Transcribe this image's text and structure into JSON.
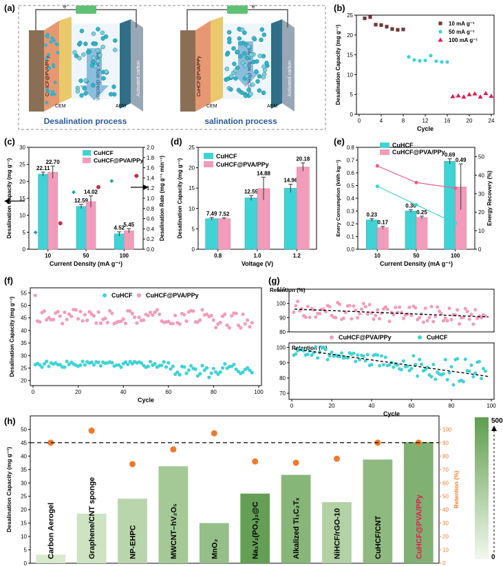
{
  "panel_labels": {
    "a": "(a)",
    "b": "(b)",
    "c": "(c)",
    "d": "(d)",
    "e": "(e)",
    "f": "(f)",
    "g": "(g)",
    "h": "(h)"
  },
  "colors": {
    "cyan": "#3fd3d6",
    "pink": "#f39bbb",
    "cyan_dark": "#2bbcc4",
    "pink_dark": "#e8608c",
    "brown": "#6b3b3b",
    "red": "#e01d4f",
    "orange": "#f07a2a",
    "green": "#73a55a",
    "green_light": "#e3f0d8",
    "dkpink": "#c0304e",
    "teal": "#2aa0a8"
  },
  "schematic": {
    "left_caption": "Desalination process",
    "right_caption": "salination process",
    "electron_left": "e⁻",
    "electron_right": "e⁻",
    "electrode_label": "CuHCF@PVA/PPy",
    "cem": "CEM",
    "aem": "AEM",
    "flow": "Water flow direction",
    "carbon": "Activated carbon"
  },
  "chart_data": [
    {
      "panel": "b",
      "type": "scatter",
      "xlabel": "Cycle",
      "ylabel": "Desalination Capacity (mg g⁻¹)",
      "xlim": [
        0,
        24
      ],
      "ylim": [
        0,
        25
      ],
      "xticks": [
        0,
        4,
        8,
        12,
        16,
        20,
        24
      ],
      "yticks": [
        0,
        5,
        10,
        15,
        20,
        25
      ],
      "series": [
        {
          "name": "10 mA g⁻¹",
          "marker": "square",
          "x": [
            1,
            2,
            3,
            4,
            5,
            6,
            7,
            8
          ],
          "y": [
            24.2,
            24.5,
            22.6,
            22.5,
            22.1,
            21.5,
            21.3,
            21.4
          ]
        },
        {
          "name": "50 mA g⁻¹",
          "marker": "circle",
          "x": [
            9,
            10,
            11,
            12,
            13,
            14,
            15,
            16
          ],
          "y": [
            14.5,
            13.7,
            13.5,
            13.6,
            14.8,
            13.4,
            13.2,
            13.2
          ]
        },
        {
          "name": "100 mA g⁻¹",
          "marker": "triangle",
          "x": [
            17,
            18,
            19,
            20,
            21,
            22,
            23,
            24
          ],
          "y": [
            4.5,
            4.7,
            4.4,
            5.0,
            5.2,
            4.4,
            5.3,
            4.6
          ]
        }
      ]
    },
    {
      "panel": "c",
      "type": "bar",
      "xlabel": "Current Density (mA g⁻¹)",
      "ylabel": "Desalination Capacity (mg g⁻¹)",
      "ylabel2": "Desalination Rate (mg g⁻¹ min⁻¹)",
      "categories": [
        "10",
        "50",
        "100"
      ],
      "ylim": [
        0,
        30
      ],
      "yticks": [
        0,
        5,
        10,
        15,
        20,
        25,
        30
      ],
      "y2lim": [
        0,
        2.0
      ],
      "y2ticks": [
        "0.0",
        "0.2",
        "0.4",
        "0.6",
        "0.8",
        "1.0",
        "1.2",
        "1.4",
        "1.6",
        "1.8",
        "2.0"
      ],
      "series": [
        {
          "name": "CuHCF",
          "values": [
            22.11,
            12.59,
            4.52
          ],
          "errors": [
            0.6,
            0.6,
            0.6
          ],
          "labels": [
            "22.11",
            "12.59",
            "4.52"
          ],
          "rate": [
            0.33,
            1.12,
            1.34
          ]
        },
        {
          "name": "CuHCF@PVA/PPy",
          "values": [
            22.7,
            14.02,
            5.45
          ],
          "errors": [
            1.8,
            1.7,
            0.6
          ],
          "labels": [
            "22.70",
            "14.02",
            "5.45"
          ],
          "rate": [
            0.51,
            1.22,
            1.44
          ]
        }
      ]
    },
    {
      "panel": "d",
      "type": "bar",
      "xlabel": "Voltage (V)",
      "ylabel": "Desalination Capacity (mg g⁻¹)",
      "categories": [
        "0.8",
        "1.0",
        "1.2"
      ],
      "ylim": [
        0,
        25
      ],
      "yticks": [
        0,
        5,
        10,
        15,
        20,
        25
      ],
      "series": [
        {
          "name": "CuHCF",
          "values": [
            7.49,
            12.59,
            14.96
          ],
          "errors": [
            0.3,
            0.6,
            1.0
          ],
          "labels": [
            "7.49",
            "12.59",
            "14.96"
          ]
        },
        {
          "name": "CuHCF@PVA/PPy",
          "values": [
            7.52,
            14.88,
            20.18
          ],
          "errors": [
            0.2,
            2.8,
            1.0
          ],
          "labels": [
            "7.52",
            "14.88",
            "20.18"
          ]
        }
      ]
    },
    {
      "panel": "e",
      "type": "bar",
      "xlabel": "Current Density (mA g⁻¹)",
      "ylabel": "Enery Consumption (kWh kg⁻¹)",
      "ylabel2": "Energy Recovery (%)",
      "categories": [
        "10",
        "50",
        "100"
      ],
      "ylim": [
        0,
        0.8
      ],
      "yticks": [
        "0.0",
        "0.1",
        "0.2",
        "0.3",
        "0.4",
        "0.5",
        "0.6",
        "0.7",
        "0.8"
      ],
      "y2lim": [
        0,
        55
      ],
      "y2ticks": [
        "0",
        "10",
        "20",
        "30",
        "40",
        "50"
      ],
      "series": [
        {
          "name": "CuHCF",
          "values": [
            0.23,
            0.3,
            0.69
          ],
          "errors": [
            0.01,
            0.01,
            0.02
          ],
          "labels": [
            "0.23",
            "0.30",
            "0.69"
          ],
          "recovery": [
            34,
            24,
            14
          ]
        },
        {
          "name": "CuHCF@PVA/PPy",
          "values": [
            0.17,
            0.25,
            0.49
          ],
          "errors": [
            0.01,
            0.01,
            0.18
          ],
          "labels": [
            "0.17",
            "0.25",
            "0.49"
          ],
          "recovery": [
            45,
            36,
            33
          ]
        }
      ]
    },
    {
      "panel": "f",
      "type": "scatter",
      "xlabel": "Cycle",
      "ylabel": "Desalination Capacity (mg g⁻¹)",
      "xlim": [
        0,
        100
      ],
      "ylim": [
        18,
        57
      ],
      "xticks": [
        0,
        20,
        40,
        60,
        80,
        100
      ],
      "yticks": [
        20,
        25,
        30,
        35,
        40,
        45,
        50,
        55
      ],
      "series": [
        {
          "name": "CuHCF",
          "base": 26.5,
          "amp": 1.2,
          "drop_from": 60,
          "drop_amp": 4.5
        },
        {
          "name": "CuHCF@PVA/PPy",
          "base": 45.5,
          "amp": 3.0,
          "first": 54
        }
      ]
    },
    {
      "panel": "g",
      "type": "scatter",
      "xlabel": "Cycle",
      "ylabel": "Retention (%)",
      "top": {
        "ylim": [
          80,
          110
        ],
        "yticks": [
          80,
          90,
          100,
          110
        ],
        "fit": [
          96,
          90.5
        ]
      },
      "bottom": {
        "ylim": [
          66,
          103
        ],
        "yticks": [
          70,
          80,
          90,
          100
        ],
        "fit": [
          99,
          81
        ]
      },
      "xlim": [
        0,
        100
      ],
      "xticks": [
        0,
        20,
        40,
        60,
        80,
        100
      ],
      "legend": [
        "CuHCF@PVA/PPy",
        "CuHCF"
      ]
    },
    {
      "panel": "h",
      "type": "bar",
      "ylabel": "Desalination Capacity (mg g⁻¹)",
      "ylabel2": "Retention (%)",
      "ylim": [
        0,
        55
      ],
      "yticks": [
        0,
        5,
        10,
        15,
        20,
        25,
        30,
        35,
        40,
        45,
        50
      ],
      "y2lim": [
        0,
        110
      ],
      "y2ticks": [
        0,
        10,
        20,
        30,
        40,
        50,
        60,
        70,
        80,
        90,
        100
      ],
      "reference_retention": 90,
      "colorbar": {
        "max": "500",
        "min": "0"
      },
      "categories": [
        "Carbon Aerogel",
        "Graphene/CNT sponge",
        "NP-EHPC",
        "MWCNT–hV₂O₅",
        "MnO₂",
        "Na₃V₂(PO₄)₃@C",
        "Alkalized Ti₃C₂Tₓ",
        "NiHCF/rGO-10",
        "CuHCF/CNT",
        "CuHCF@PVA/PPy"
      ],
      "values": [
        3.2,
        18.5,
        24.1,
        36.2,
        15.0,
        26.0,
        33.0,
        22.8,
        38.7,
        45.2
      ],
      "retention": [
        90,
        99,
        74,
        85,
        97,
        76,
        75,
        78,
        90,
        90
      ],
      "intensity": [
        0.08,
        0.15,
        0.3,
        0.45,
        0.55,
        0.9,
        0.65,
        0.35,
        0.6,
        0.7
      ]
    }
  ],
  "legends": {
    "b": [
      "10 mA g⁻¹",
      "50 mA g⁻¹",
      "100 mA g⁻¹"
    ],
    "c": [
      "CuHCF",
      "CuHCF@PVA/PPy"
    ],
    "d": [
      "CuHCF",
      "CuHCF@PVA/PPy"
    ],
    "e": [
      "CuHCF",
      "CuHCF@PVA/PPy"
    ],
    "f": [
      "CuHCF",
      "CuHCF@PVA/PPy"
    ]
  }
}
